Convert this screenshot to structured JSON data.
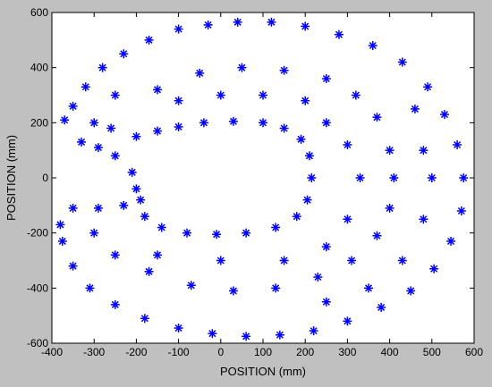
{
  "chart_data": {
    "type": "scatter",
    "title": "",
    "xlabel": "POSITION (mm)",
    "ylabel": "POSITION (mm)",
    "xlim": [
      -400,
      600
    ],
    "ylim": [
      -600,
      600
    ],
    "xticks": [
      -400,
      -300,
      -200,
      -100,
      0,
      100,
      200,
      300,
      400,
      500,
      600
    ],
    "yticks": [
      -600,
      -400,
      -200,
      0,
      200,
      400,
      600
    ],
    "xtick_labels": [
      "-400",
      "-300",
      "-200",
      "-100",
      "0",
      "100",
      "200",
      "300",
      "400",
      "500",
      "600"
    ],
    "ytick_labels": [
      "-600",
      "-400",
      "-200",
      "0",
      "200",
      "400",
      "600"
    ],
    "grid": false,
    "marker": "asterisk",
    "series": [
      {
        "color": "#0000ff",
        "points": [
          [
            -370,
            210
          ],
          [
            -350,
            260
          ],
          [
            -320,
            330
          ],
          [
            -280,
            400
          ],
          [
            -230,
            450
          ],
          [
            -170,
            500
          ],
          [
            -100,
            540
          ],
          [
            -30,
            555
          ],
          [
            40,
            565
          ],
          [
            120,
            565
          ],
          [
            200,
            550
          ],
          [
            280,
            520
          ],
          [
            360,
            480
          ],
          [
            430,
            420
          ],
          [
            490,
            330
          ],
          [
            530,
            230
          ],
          [
            560,
            120
          ],
          [
            575,
            0
          ],
          [
            570,
            -120
          ],
          [
            545,
            -230
          ],
          [
            505,
            -330
          ],
          [
            450,
            -410
          ],
          [
            380,
            -470
          ],
          [
            300,
            -520
          ],
          [
            220,
            -555
          ],
          [
            140,
            -570
          ],
          [
            60,
            -575
          ],
          [
            -20,
            -565
          ],
          [
            -100,
            -545
          ],
          [
            -180,
            -510
          ],
          [
            -250,
            -460
          ],
          [
            -310,
            -400
          ],
          [
            -350,
            -320
          ],
          [
            -375,
            -230
          ],
          [
            -380,
            -170
          ],
          [
            -330,
            130
          ],
          [
            -290,
            110
          ],
          [
            -250,
            80
          ],
          [
            -210,
            20
          ],
          [
            -200,
            -40
          ],
          [
            -230,
            -100
          ],
          [
            -290,
            -110
          ],
          [
            -350,
            -110
          ],
          [
            -200,
            150
          ],
          [
            -150,
            170
          ],
          [
            -100,
            185
          ],
          [
            -40,
            200
          ],
          [
            30,
            205
          ],
          [
            100,
            200
          ],
          [
            150,
            180
          ],
          [
            190,
            140
          ],
          [
            210,
            80
          ],
          [
            215,
            0
          ],
          [
            205,
            -80
          ],
          [
            180,
            -140
          ],
          [
            130,
            -180
          ],
          [
            60,
            -200
          ],
          [
            -10,
            -205
          ],
          [
            -80,
            -200
          ],
          [
            -140,
            -180
          ],
          [
            -180,
            -140
          ],
          [
            -190,
            -80
          ],
          [
            -150,
            320
          ],
          [
            -50,
            380
          ],
          [
            50,
            400
          ],
          [
            150,
            390
          ],
          [
            250,
            360
          ],
          [
            320,
            300
          ],
          [
            370,
            220
          ],
          [
            400,
            100
          ],
          [
            410,
            0
          ],
          [
            400,
            -110
          ],
          [
            370,
            -210
          ],
          [
            310,
            -300
          ],
          [
            230,
            -360
          ],
          [
            130,
            -400
          ],
          [
            30,
            -410
          ],
          [
            -70,
            -390
          ],
          [
            -170,
            -340
          ],
          [
            -250,
            -280
          ],
          [
            -300,
            -200
          ],
          [
            -250,
            300
          ],
          [
            -300,
            200
          ],
          [
            -260,
            180
          ],
          [
            250,
            200
          ],
          [
            300,
            120
          ],
          [
            330,
            0
          ],
          [
            300,
            -150
          ],
          [
            250,
            -250
          ],
          [
            0,
            300
          ],
          [
            -100,
            280
          ],
          [
            100,
            300
          ],
          [
            200,
            280
          ],
          [
            0,
            -300
          ],
          [
            -150,
            -280
          ],
          [
            150,
            -300
          ],
          [
            460,
            250
          ],
          [
            480,
            100
          ],
          [
            500,
            0
          ],
          [
            480,
            -150
          ],
          [
            430,
            -300
          ],
          [
            350,
            -400
          ],
          [
            250,
            -450
          ]
        ]
      }
    ]
  }
}
